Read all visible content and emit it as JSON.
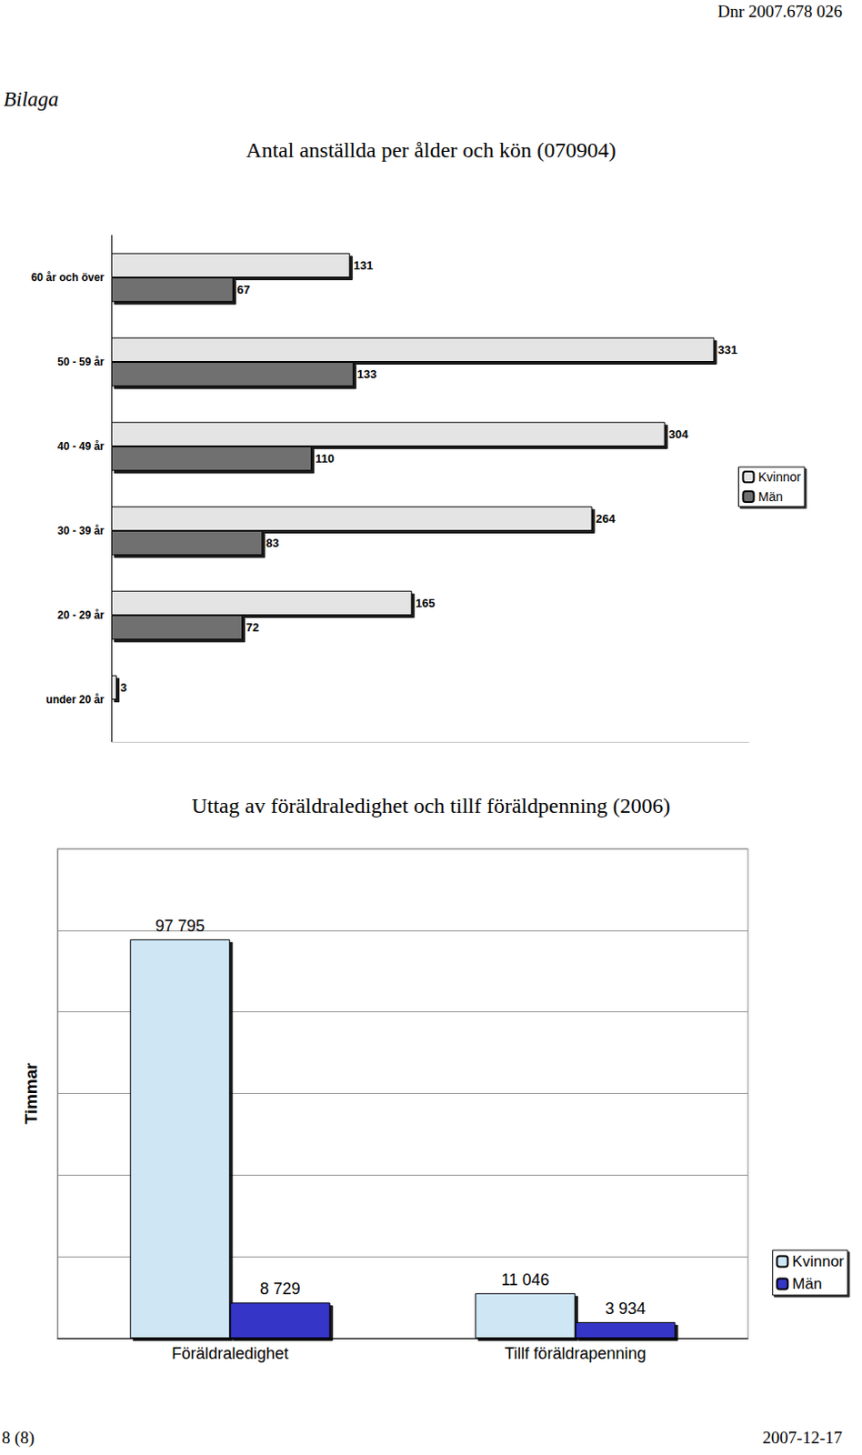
{
  "page": {
    "header": "Dnr 2007.678   026",
    "attachment": "Bilaga",
    "footer_left": "8 (8)",
    "footer_right": "2007-12-17"
  },
  "chart_data": [
    {
      "type": "bar",
      "title": "Antal anställda per ålder och kön (070904)",
      "orientation": "horizontal",
      "categories": [
        "60 år och över",
        "50 - 59 år",
        "40 - 49 år",
        "30 - 39 år",
        "20 - 29 år",
        "under 20 år"
      ],
      "series": [
        {
          "name": "Kvinnor",
          "color": "#e4e4e4",
          "values": [
            131,
            331,
            304,
            264,
            165,
            3
          ]
        },
        {
          "name": "Män",
          "color": "#707070",
          "values": [
            67,
            133,
            110,
            83,
            72,
            null
          ]
        }
      ],
      "xlim": [
        0,
        350
      ],
      "data_labels": true,
      "tick_labels": "y",
      "grid": false,
      "legend": "right"
    },
    {
      "type": "bar",
      "title": "Uttag av föräldraledighet och tillf föräldpenning (2006)",
      "ylabel": "Timmar",
      "categories": [
        "Föräldraledighet",
        "Tillf föräldrapenning"
      ],
      "series": [
        {
          "name": "Kvinnor",
          "color": "#cfe6f5",
          "values": [
            97795,
            11046
          ],
          "value_labels": [
            "97 795",
            "11 046"
          ]
        },
        {
          "name": "Män",
          "color": "#3535c8",
          "values": [
            8729,
            3934
          ],
          "value_labels": [
            "8 729",
            "3 934"
          ]
        }
      ],
      "ylim": [
        0,
        120000
      ],
      "yticks": [
        0,
        20000,
        40000,
        60000,
        80000,
        100000,
        120000
      ],
      "data_labels": true,
      "tick_labels": "x",
      "grid": true,
      "legend": "right"
    }
  ]
}
